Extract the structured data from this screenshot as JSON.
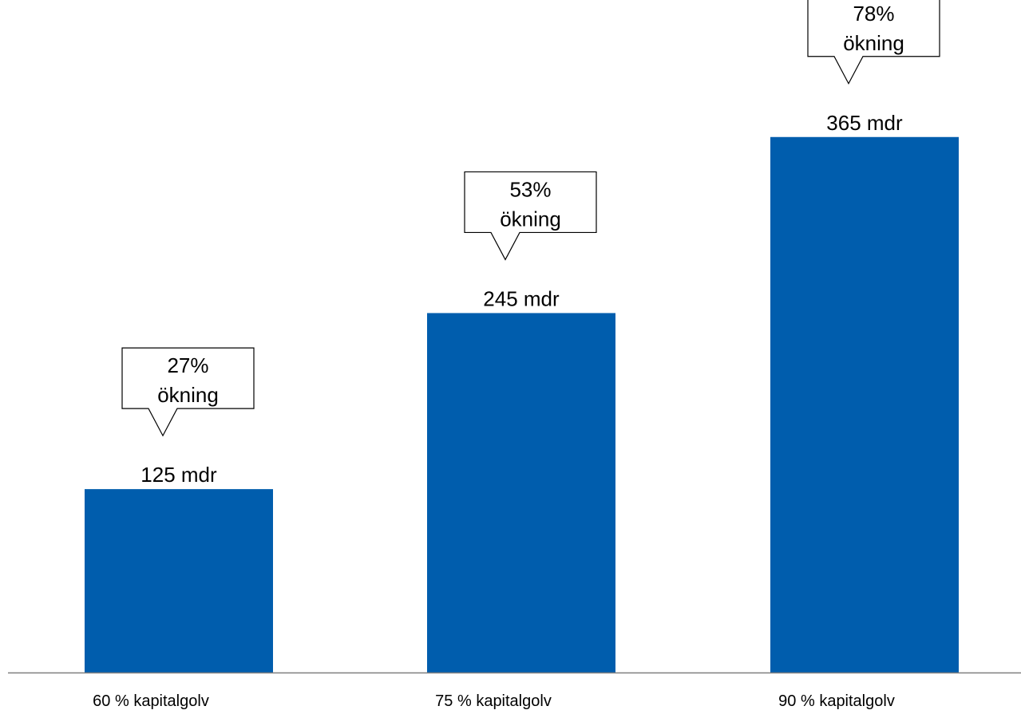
{
  "chart_data": {
    "type": "bar",
    "title": "",
    "xlabel": "",
    "ylabel": "",
    "categories": [
      "60 % kapitalgolv",
      "75 % kapitalgolv",
      "90 % kapitalgolv"
    ],
    "values": [
      125,
      245,
      365
    ],
    "value_labels": [
      "125 mdr",
      "245 mdr",
      "365 mdr"
    ],
    "annotations": [
      {
        "line1": "27%",
        "line2": "ökning"
      },
      {
        "line1": "53%",
        "line2": "ökning"
      },
      {
        "line1": "78%",
        "line2": "ökning"
      }
    ],
    "ylim": [
      0,
      400
    ],
    "grid": false,
    "legend": "none",
    "colors": {
      "bar": "#005DAD",
      "axis": "#7F7F7F",
      "callout_border": "#000000",
      "callout_fill": "#FFFFFF"
    }
  }
}
